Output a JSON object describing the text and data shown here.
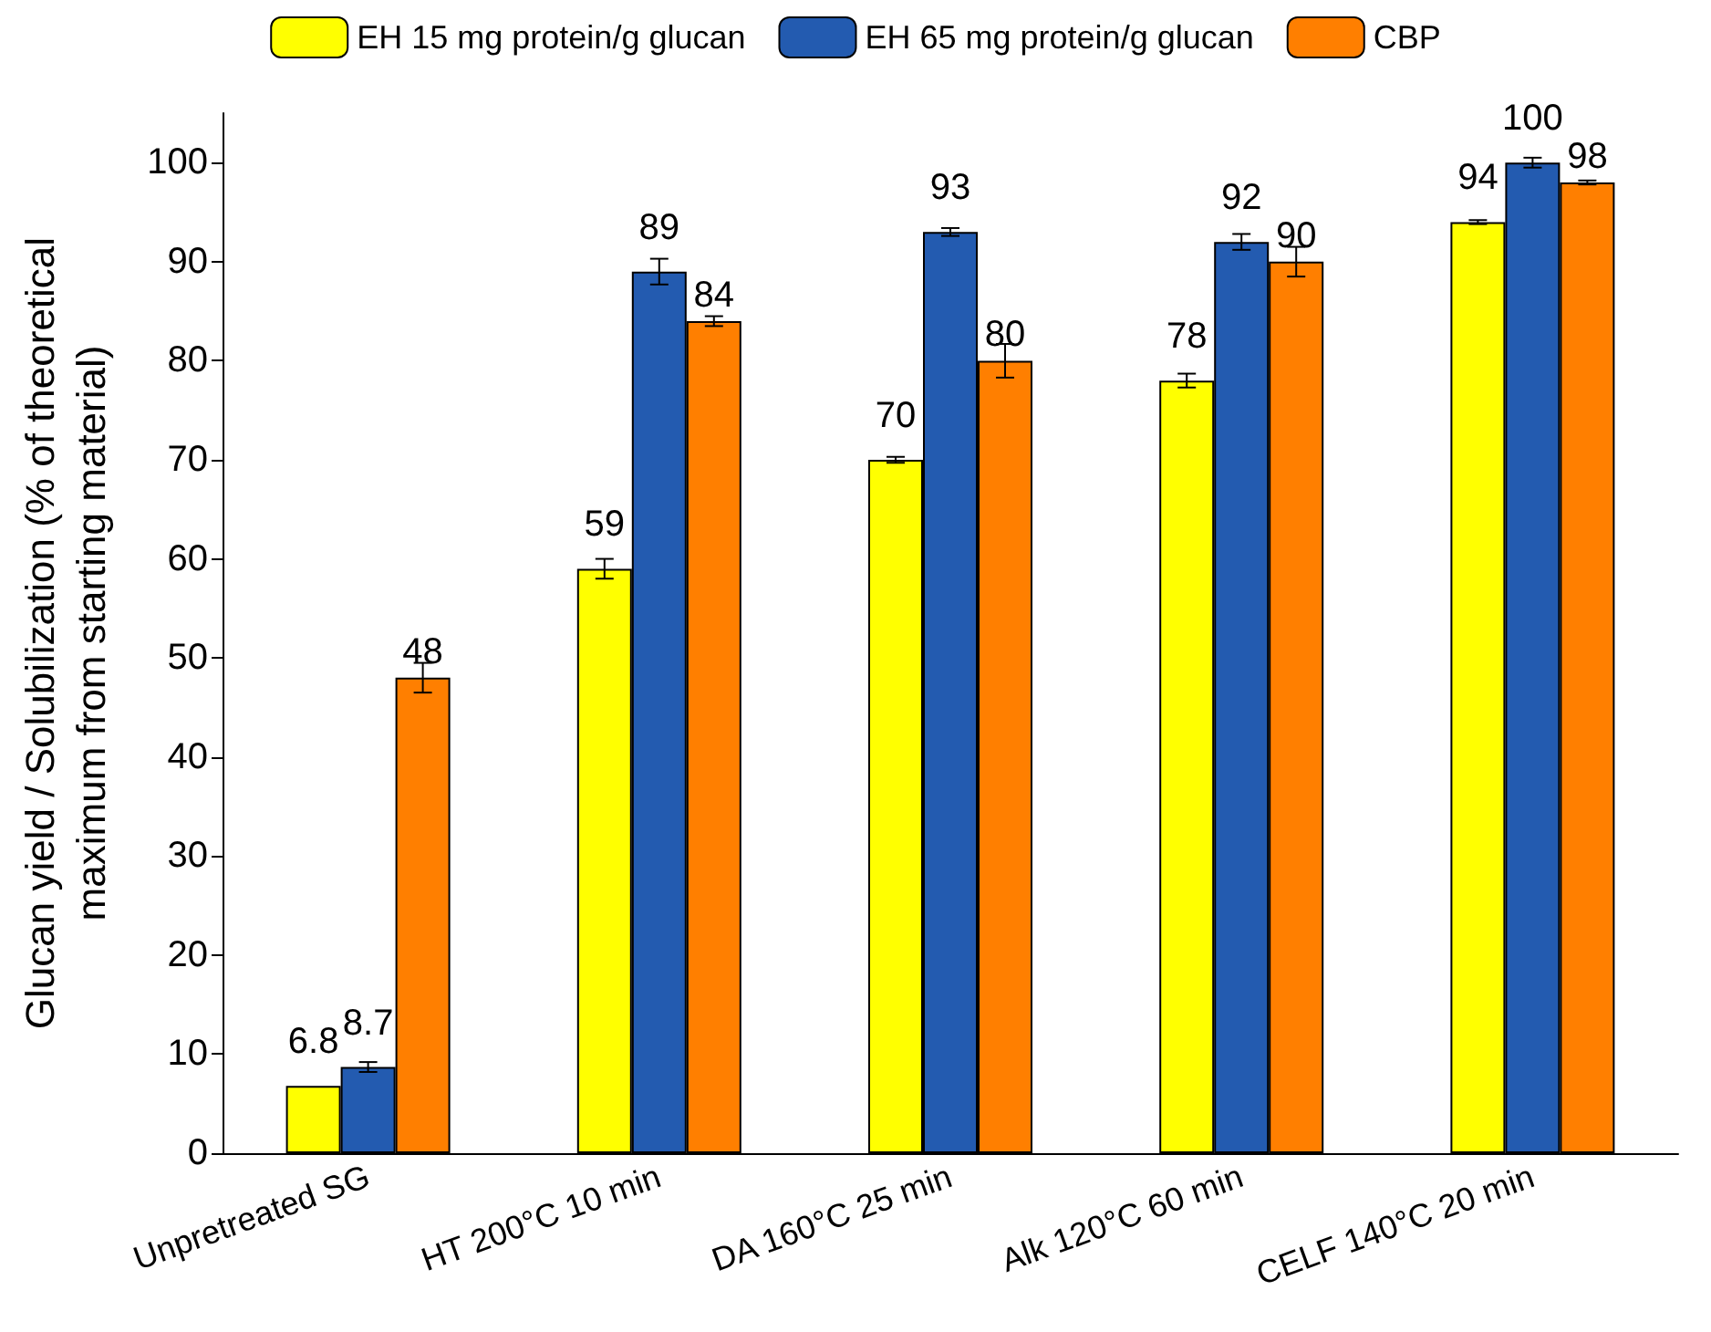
{
  "chart_data": {
    "type": "bar",
    "xlabel": null,
    "ylabel": "Glucan yield / Solubilization (% of theoretical\nmaximum from starting material)",
    "categories": [
      "Unpretreated SG",
      "HT 200°C 10 min",
      "DA 160°C 25 min",
      "Alk 120°C 60 min",
      "CELF 140°C 20 min"
    ],
    "series": [
      {
        "name": "EH 15 mg protein/g glucan",
        "color": "#ffff00",
        "values": [
          6.8,
          59,
          70,
          78,
          94
        ],
        "errors": [
          null,
          1,
          0.3,
          0.7,
          0.2
        ]
      },
      {
        "name": "EH 65 mg protein/g glucan",
        "color": "#235bb0",
        "values": [
          8.7,
          89,
          93,
          92,
          100
        ],
        "errors": [
          0.5,
          1.3,
          0.4,
          0.8,
          0.5
        ]
      },
      {
        "name": "CBP",
        "color": "#ff7f00",
        "values": [
          48,
          84,
          80,
          90,
          98
        ],
        "errors": [
          1.5,
          0.5,
          1.7,
          1.5,
          0.2
        ]
      }
    ],
    "ylim": [
      0,
      105
    ],
    "yticks": [
      0,
      10,
      20,
      30,
      40,
      50,
      60,
      70,
      80,
      90,
      100
    ],
    "data_labels": true,
    "grid": false,
    "legend": "top"
  }
}
